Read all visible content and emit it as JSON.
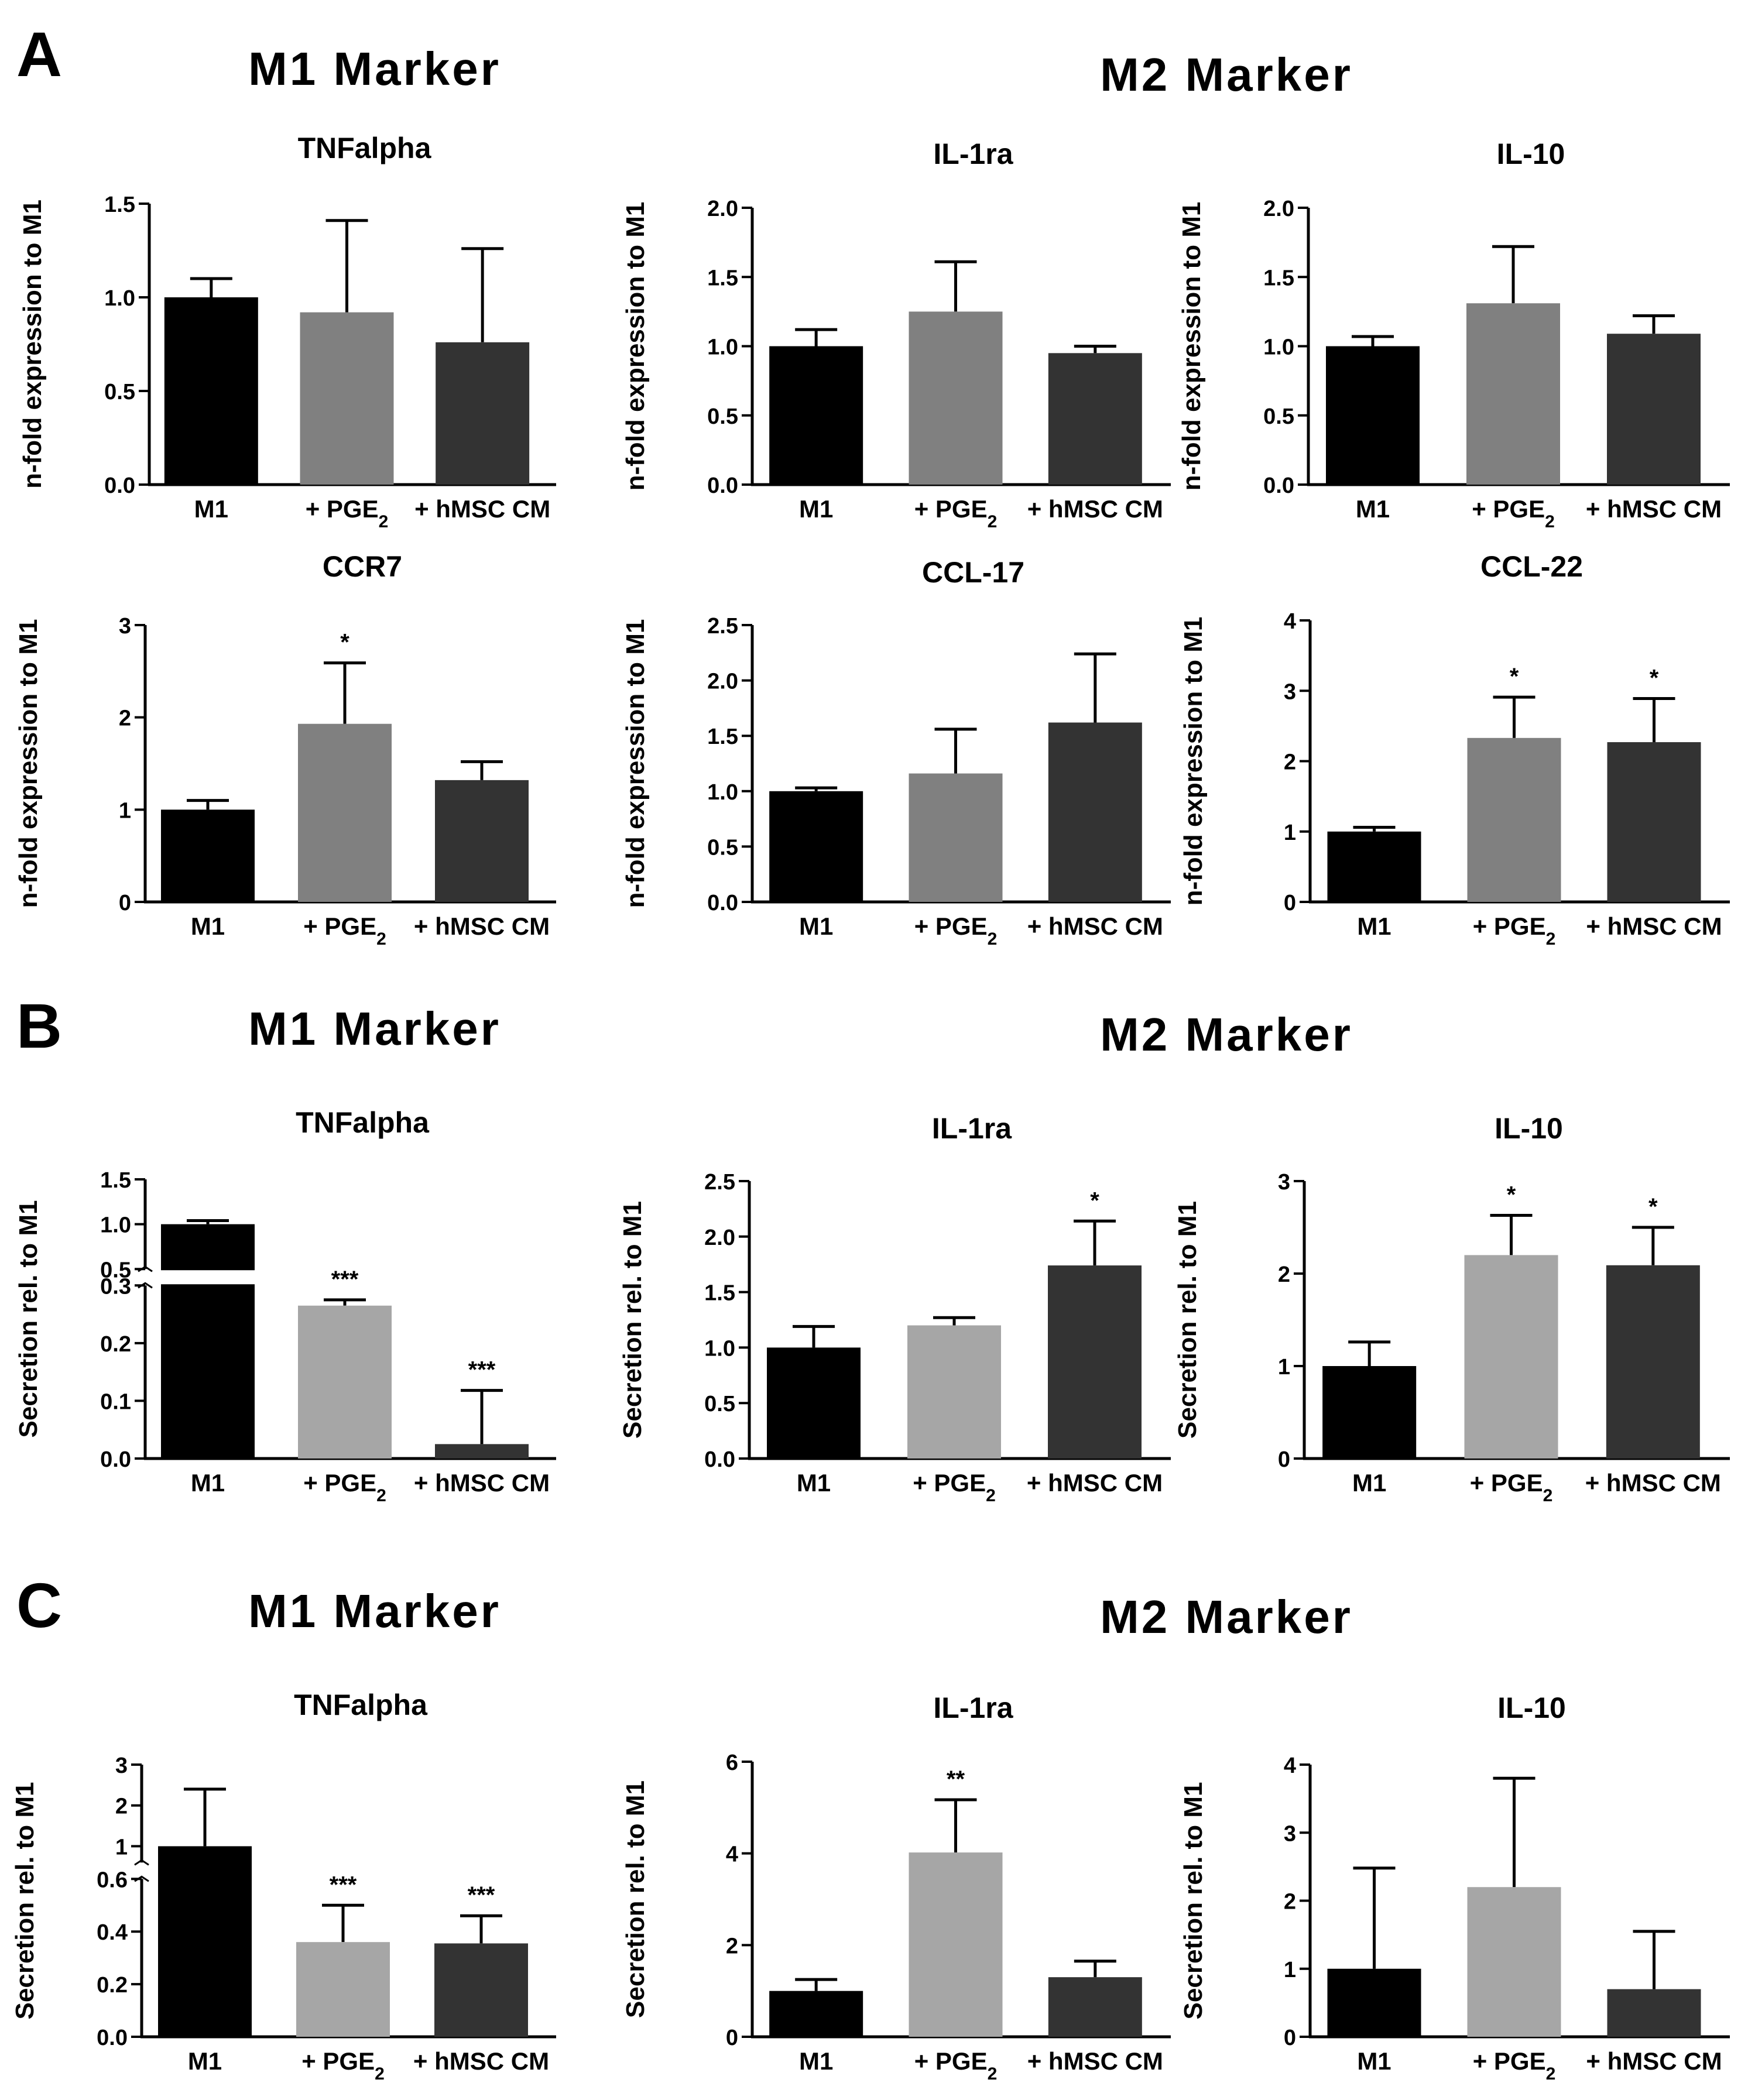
{
  "figure": {
    "panels": [
      {
        "letter": "A",
        "m1_title": "M1 Marker",
        "m2_title": "M2 Marker"
      },
      {
        "letter": "B",
        "m1_title": "M1 Marker",
        "m2_title": "M2 Marker"
      },
      {
        "letter": "C",
        "m1_title": "M1 Marker",
        "m2_title": "M2 Marker"
      }
    ]
  },
  "colors": {
    "M1": "#000000",
    "PGE2": "#808080",
    "PGE2_light": "#a6a6a6",
    "hMSC": "#333333"
  },
  "chart_data": [
    {
      "id": "A-TNFalpha",
      "panel": "A",
      "type": "bar",
      "title": "TNFalpha",
      "ylabel": "n-fold expression to M1",
      "categories": [
        "M1",
        "+ PGE2",
        "+ hMSC CM"
      ],
      "values": [
        1.0,
        0.92,
        0.76
      ],
      "errors": [
        0.1,
        0.49,
        0.5
      ],
      "stars": [
        "",
        "",
        ""
      ],
      "ylim": [
        0,
        1.5
      ],
      "yticks": [
        "0.0",
        "0.5",
        "1.0",
        "1.5"
      ]
    },
    {
      "id": "A-IL-1ra",
      "panel": "A",
      "type": "bar",
      "title": "IL-1ra",
      "ylabel": "n-fold expression to M1",
      "categories": [
        "M1",
        "+ PGE2",
        "+ hMSC CM"
      ],
      "values": [
        1.0,
        1.25,
        0.95
      ],
      "errors": [
        0.12,
        0.36,
        0.05
      ],
      "stars": [
        "",
        "",
        ""
      ],
      "ylim": [
        0,
        2.0
      ],
      "yticks": [
        "0.0",
        "0.5",
        "1.0",
        "1.5",
        "2.0"
      ]
    },
    {
      "id": "A-IL-10",
      "panel": "A",
      "type": "bar",
      "title": "IL-10",
      "ylabel": "n-fold expression to M1",
      "categories": [
        "M1",
        "+ PGE2",
        "+ hMSC CM"
      ],
      "values": [
        1.0,
        1.31,
        1.09
      ],
      "errors": [
        0.07,
        0.41,
        0.13
      ],
      "stars": [
        "",
        "",
        ""
      ],
      "ylim": [
        0,
        2.0
      ],
      "yticks": [
        "0.0",
        "0.5",
        "1.0",
        "1.5",
        "2.0"
      ]
    },
    {
      "id": "A-CCR7",
      "panel": "A",
      "type": "bar",
      "title": "CCR7",
      "ylabel": "n-fold expression to M1",
      "categories": [
        "M1",
        "+ PGE2",
        "+ hMSC CM"
      ],
      "values": [
        1.0,
        1.93,
        1.32
      ],
      "errors": [
        0.1,
        0.66,
        0.2
      ],
      "stars": [
        "",
        "*",
        ""
      ],
      "ylim": [
        0,
        3
      ],
      "yticks": [
        "0",
        "1",
        "2",
        "3"
      ]
    },
    {
      "id": "A-CCL-17",
      "panel": "A",
      "type": "bar",
      "title": "CCL-17",
      "ylabel": "n-fold expression to M1",
      "categories": [
        "M1",
        "+ PGE2",
        "+ hMSC CM"
      ],
      "values": [
        1.0,
        1.16,
        1.62
      ],
      "errors": [
        0.03,
        0.4,
        0.62
      ],
      "stars": [
        "",
        "",
        ""
      ],
      "ylim": [
        0,
        2.5
      ],
      "yticks": [
        "0.0",
        "0.5",
        "1.0",
        "1.5",
        "2.0",
        "2.5"
      ]
    },
    {
      "id": "A-CCL-22",
      "panel": "A",
      "type": "bar",
      "title": "CCL-22",
      "ylabel": "n-fold expression to M1",
      "categories": [
        "M1",
        "+ PGE2",
        "+ hMSC CM"
      ],
      "values": [
        1.0,
        2.33,
        2.27
      ],
      "errors": [
        0.06,
        0.58,
        0.62
      ],
      "stars": [
        "",
        "*",
        "*"
      ],
      "ylim": [
        0,
        4
      ],
      "yticks": [
        "0",
        "1",
        "2",
        "3",
        "4"
      ]
    },
    {
      "id": "B-TNFalpha",
      "panel": "B",
      "type": "bar",
      "title": "TNFalpha",
      "ylabel": "Secretion rel. to M1",
      "categories": [
        "M1",
        "+ PGE2",
        "+ hMSC CM"
      ],
      "values": [
        1.0,
        0.265,
        0.025
      ],
      "errors": [
        0.04,
        0.01,
        0.093
      ],
      "stars": [
        "",
        "***",
        "***"
      ],
      "ylim": [
        0,
        1.5
      ],
      "broken_axis": {
        "lower": [
          0,
          0.3
        ],
        "upper": [
          0.5,
          1.5
        ]
      },
      "yticks": [
        "0.0",
        "0.1",
        "0.2",
        "0.3",
        "0.5",
        "1.0",
        "1.5"
      ]
    },
    {
      "id": "B-IL-1ra",
      "panel": "B",
      "type": "bar",
      "title": "IL-1ra",
      "ylabel": "Secretion rel. to M1",
      "categories": [
        "M1",
        "+ PGE2",
        "+ hMSC CM"
      ],
      "values": [
        1.0,
        1.2,
        1.74
      ],
      "errors": [
        0.19,
        0.07,
        0.4
      ],
      "stars": [
        "",
        "",
        "*"
      ],
      "ylim": [
        0,
        2.5
      ],
      "yticks": [
        "0.0",
        "0.5",
        "1.0",
        "1.5",
        "2.0",
        "2.5"
      ]
    },
    {
      "id": "B-IL-10",
      "panel": "B",
      "type": "bar",
      "title": "IL-10",
      "ylabel": "Secretion rel. to M1",
      "categories": [
        "M1",
        "+ PGE2",
        "+ hMSC CM"
      ],
      "values": [
        1.0,
        2.2,
        2.09
      ],
      "errors": [
        0.26,
        0.43,
        0.41
      ],
      "stars": [
        "",
        "*",
        "*"
      ],
      "ylim": [
        0,
        3
      ],
      "yticks": [
        "0",
        "1",
        "2",
        "3"
      ]
    },
    {
      "id": "C-TNFalpha",
      "panel": "C",
      "type": "bar",
      "title": "TNFalpha",
      "ylabel": "Secretion rel. to M1",
      "categories": [
        "M1",
        "+ PGE2",
        "+ hMSC CM"
      ],
      "values": [
        1.0,
        0.36,
        0.355
      ],
      "errors": [
        1.4,
        0.14,
        0.105
      ],
      "stars": [
        "",
        "***",
        "***"
      ],
      "ylim": [
        0,
        3
      ],
      "broken_axis": {
        "lower": [
          0,
          0.6
        ],
        "upper": [
          0.6,
          3
        ]
      },
      "yticks": [
        "0.0",
        "0.2",
        "0.4",
        "0.6",
        "1",
        "2",
        "3"
      ]
    },
    {
      "id": "C-IL-1ra",
      "panel": "C",
      "type": "bar",
      "title": "IL-1ra",
      "ylabel": "Secretion rel. to M1",
      "categories": [
        "M1",
        "+ PGE2",
        "+ hMSC CM"
      ],
      "values": [
        1.0,
        4.02,
        1.3
      ],
      "errors": [
        0.25,
        1.15,
        0.35
      ],
      "stars": [
        "",
        "**",
        ""
      ],
      "ylim": [
        0,
        6
      ],
      "yticks": [
        "0",
        "2",
        "4",
        "6"
      ]
    },
    {
      "id": "C-IL-10",
      "panel": "C",
      "type": "bar",
      "title": "IL-10",
      "ylabel": "Secretion rel. to M1",
      "categories": [
        "M1",
        "+ PGE2",
        "+ hMSC CM"
      ],
      "values": [
        1.0,
        2.2,
        0.7
      ],
      "errors": [
        1.48,
        1.6,
        0.85
      ],
      "stars": [
        "",
        "",
        ""
      ],
      "ylim": [
        0,
        4
      ],
      "yticks": [
        "0",
        "1",
        "2",
        "3",
        "4"
      ]
    }
  ]
}
